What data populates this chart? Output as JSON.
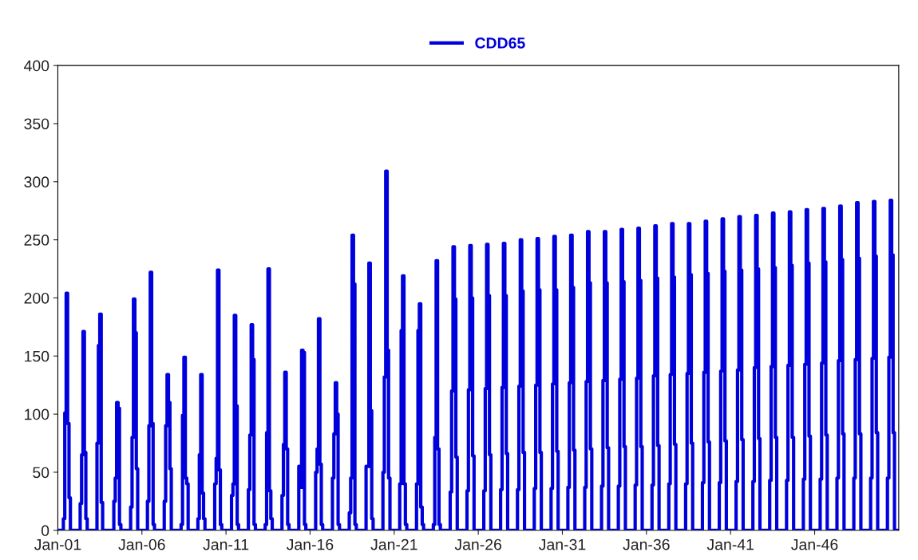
{
  "chart_data": {
    "type": "step",
    "legend": "top",
    "xlim": [
      "2001-01",
      "2051-01"
    ],
    "ylim": [
      0,
      400
    ],
    "yticks": [
      0,
      50,
      100,
      150,
      200,
      250,
      300,
      350,
      400
    ],
    "xticks": [
      {
        "value": "2001-01",
        "label": "Jan-01"
      },
      {
        "value": "2006-01",
        "label": "Jan-06"
      },
      {
        "value": "2011-01",
        "label": "Jan-11"
      },
      {
        "value": "2016-01",
        "label": "Jan-16"
      },
      {
        "value": "2021-01",
        "label": "Jan-21"
      },
      {
        "value": "2026-01",
        "label": "Jan-26"
      },
      {
        "value": "2031-01",
        "label": "Jan-31"
      },
      {
        "value": "2036-01",
        "label": "Jan-36"
      },
      {
        "value": "2041-01",
        "label": "Jan-41"
      },
      {
        "value": "2046-01",
        "label": "Jan-46"
      }
    ],
    "series": [
      {
        "name": "CDD65",
        "color": "#0000dd",
        "x": [
          "2001-01",
          "2001-05",
          "2001-06",
          "2001-07",
          "2001-08",
          "2001-09",
          "2001-10",
          "2002-05",
          "2002-06",
          "2002-07",
          "2002-08",
          "2002-09",
          "2002-10",
          "2003-05",
          "2003-06",
          "2003-07",
          "2003-08",
          "2003-09",
          "2003-10",
          "2004-05",
          "2004-06",
          "2004-07",
          "2004-08",
          "2004-09",
          "2004-10",
          "2005-05",
          "2005-06",
          "2005-07",
          "2005-08",
          "2005-09",
          "2005-10",
          "2006-05",
          "2006-06",
          "2006-07",
          "2006-08",
          "2006-09",
          "2006-10",
          "2007-05",
          "2007-06",
          "2007-07",
          "2007-08",
          "2007-09",
          "2007-10",
          "2008-05",
          "2008-06",
          "2008-07",
          "2008-08",
          "2008-09",
          "2008-10",
          "2009-05",
          "2009-06",
          "2009-07",
          "2009-08",
          "2009-09",
          "2009-10",
          "2010-05",
          "2010-06",
          "2010-07",
          "2010-08",
          "2010-09",
          "2010-10",
          "2011-05",
          "2011-06",
          "2011-07",
          "2011-08",
          "2011-09",
          "2011-10",
          "2012-05",
          "2012-06",
          "2012-07",
          "2012-08",
          "2012-09",
          "2012-10",
          "2013-05",
          "2013-06",
          "2013-07",
          "2013-08",
          "2013-09",
          "2013-10",
          "2014-05",
          "2014-06",
          "2014-07",
          "2014-08",
          "2014-09",
          "2014-10",
          "2015-05",
          "2015-06",
          "2015-07",
          "2015-08",
          "2015-09",
          "2015-10",
          "2016-05",
          "2016-06",
          "2016-07",
          "2016-08",
          "2016-09",
          "2016-10",
          "2017-05",
          "2017-06",
          "2017-07",
          "2017-08",
          "2017-09",
          "2017-10",
          "2018-05",
          "2018-06",
          "2018-07",
          "2018-08",
          "2018-09",
          "2018-10",
          "2019-05",
          "2019-06",
          "2019-07",
          "2019-08",
          "2019-09",
          "2019-10",
          "2020-05",
          "2020-06",
          "2020-07",
          "2020-08",
          "2020-09",
          "2020-10",
          "2021-05",
          "2021-06",
          "2021-07",
          "2021-08",
          "2021-09",
          "2021-10",
          "2022-05",
          "2022-06",
          "2022-07",
          "2022-08",
          "2022-09",
          "2022-10",
          "2023-05",
          "2023-06",
          "2023-07",
          "2023-08",
          "2023-09",
          "2023-10",
          "2024-05",
          "2024-06",
          "2024-07",
          "2024-08",
          "2024-09",
          "2024-10",
          "2025-05",
          "2025-06",
          "2025-07",
          "2025-08",
          "2025-09",
          "2025-10",
          "2026-05",
          "2026-06",
          "2026-07",
          "2026-08",
          "2026-09",
          "2026-10",
          "2027-05",
          "2027-06",
          "2027-07",
          "2027-08",
          "2027-09",
          "2027-10",
          "2028-05",
          "2028-06",
          "2028-07",
          "2028-08",
          "2028-09",
          "2028-10",
          "2029-05",
          "2029-06",
          "2029-07",
          "2029-08",
          "2029-09",
          "2029-10",
          "2030-05",
          "2030-06",
          "2030-07",
          "2030-08",
          "2030-09",
          "2030-10",
          "2031-05",
          "2031-06",
          "2031-07",
          "2031-08",
          "2031-09",
          "2031-10",
          "2032-05",
          "2032-06",
          "2032-07",
          "2032-08",
          "2032-09",
          "2032-10",
          "2033-05",
          "2033-06",
          "2033-07",
          "2033-08",
          "2033-09",
          "2033-10",
          "2034-05",
          "2034-06",
          "2034-07",
          "2034-08",
          "2034-09",
          "2034-10",
          "2035-05",
          "2035-06",
          "2035-07",
          "2035-08",
          "2035-09",
          "2035-10",
          "2036-05",
          "2036-06",
          "2036-07",
          "2036-08",
          "2036-09",
          "2036-10",
          "2037-05",
          "2037-06",
          "2037-07",
          "2037-08",
          "2037-09",
          "2037-10",
          "2038-05",
          "2038-06",
          "2038-07",
          "2038-08",
          "2038-09",
          "2038-10",
          "2039-05",
          "2039-06",
          "2039-07",
          "2039-08",
          "2039-09",
          "2039-10",
          "2040-05",
          "2040-06",
          "2040-07",
          "2040-08",
          "2040-09",
          "2040-10",
          "2041-05",
          "2041-06",
          "2041-07",
          "2041-08",
          "2041-09",
          "2041-10",
          "2042-05",
          "2042-06",
          "2042-07",
          "2042-08",
          "2042-09",
          "2042-10",
          "2043-05",
          "2043-06",
          "2043-07",
          "2043-08",
          "2043-09",
          "2043-10",
          "2044-05",
          "2044-06",
          "2044-07",
          "2044-08",
          "2044-09",
          "2044-10",
          "2045-05",
          "2045-06",
          "2045-07",
          "2045-08",
          "2045-09",
          "2045-10",
          "2046-05",
          "2046-06",
          "2046-07",
          "2046-08",
          "2046-09",
          "2046-10",
          "2047-05",
          "2047-06",
          "2047-07",
          "2047-08",
          "2047-09",
          "2047-10",
          "2048-05",
          "2048-06",
          "2048-07",
          "2048-08",
          "2048-09",
          "2048-10",
          "2049-05",
          "2049-06",
          "2049-07",
          "2049-08",
          "2049-09",
          "2049-10",
          "2050-05",
          "2050-06",
          "2050-07",
          "2050-08",
          "2050-09",
          "2050-10",
          "2050-12"
        ],
        "values": [
          0,
          10,
          101,
          204,
          92,
          28,
          0,
          23,
          65,
          171,
          67,
          10,
          0,
          75,
          159,
          186,
          24,
          0,
          0,
          25,
          45,
          110,
          105,
          5,
          0,
          20,
          80,
          199,
          170,
          53,
          0,
          25,
          90,
          222,
          92,
          5,
          0,
          25,
          90,
          134,
          110,
          53,
          0,
          5,
          99,
          149,
          45,
          40,
          0,
          10,
          65,
          134,
          32,
          10,
          0,
          40,
          62,
          224,
          52,
          5,
          0,
          30,
          40,
          185,
          107,
          5,
          0,
          35,
          82,
          177,
          147,
          5,
          0,
          5,
          84,
          225,
          34,
          10,
          0,
          30,
          74,
          136,
          70,
          5,
          0,
          55,
          37,
          155,
          153,
          5,
          0,
          50,
          70,
          182,
          57,
          5,
          0,
          45,
          83,
          127,
          100,
          5,
          0,
          15,
          45,
          254,
          212,
          5,
          0,
          55,
          55,
          230,
          103,
          10,
          0,
          50,
          132,
          309,
          155,
          45,
          0,
          40,
          172,
          219,
          40,
          5,
          0,
          40,
          172,
          195,
          20,
          5,
          0,
          5,
          80,
          232,
          70,
          5,
          0,
          33,
          120,
          244,
          199,
          63,
          0,
          34,
          121,
          245,
          200,
          64,
          0,
          34,
          122,
          246,
          202,
          65,
          0,
          35,
          123,
          247,
          202,
          66,
          0,
          35,
          124,
          250,
          206,
          67,
          0,
          36,
          125,
          251,
          207,
          67,
          0,
          36,
          126,
          253,
          207,
          68,
          0,
          37,
          127,
          254,
          209,
          69,
          0,
          37,
          128,
          257,
          213,
          70,
          0,
          38,
          129,
          257,
          213,
          71,
          0,
          38,
          130,
          259,
          214,
          72,
          0,
          39,
          131,
          260,
          215,
          72,
          0,
          39,
          133,
          262,
          217,
          73,
          0,
          40,
          134,
          264,
          218,
          74,
          0,
          40,
          135,
          264,
          220,
          75,
          0,
          41,
          136,
          266,
          221,
          76,
          0,
          41,
          137,
          268,
          223,
          77,
          0,
          42,
          138,
          270,
          224,
          78,
          0,
          42,
          140,
          271,
          225,
          79,
          0,
          43,
          141,
          273,
          226,
          80,
          0,
          43,
          142,
          274,
          228,
          80,
          0,
          44,
          143,
          276,
          230,
          81,
          0,
          44,
          144,
          277,
          231,
          82,
          0,
          45,
          146,
          279,
          233,
          83,
          0,
          45,
          147,
          282,
          234,
          83,
          0,
          45,
          148,
          283,
          236,
          84,
          0,
          45,
          149,
          284,
          237,
          84,
          0,
          0
        ]
      }
    ]
  }
}
